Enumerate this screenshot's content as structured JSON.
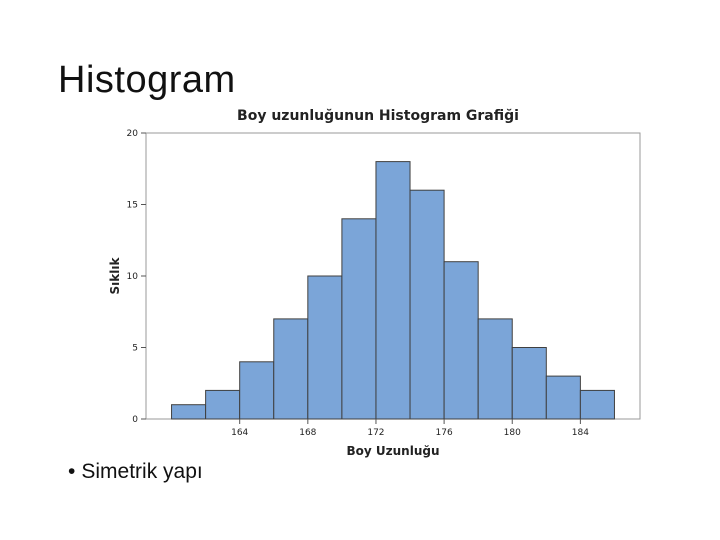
{
  "slide": {
    "title": "Histogram",
    "bullet": "Simetrik yapı",
    "bullet_marker": "•"
  },
  "chart_data": {
    "type": "bar",
    "title": "Boy uzunluğunun Histogram Grafiği",
    "xlabel": "Boy Uzunluğu",
    "ylabel": "Sıklık",
    "bin_edges": [
      160,
      162,
      164,
      166,
      168,
      170,
      172,
      174,
      176,
      178,
      180,
      182,
      184,
      186
    ],
    "values": [
      1,
      2,
      4,
      7,
      10,
      14,
      18,
      16,
      11,
      7,
      5,
      3,
      2
    ],
    "xlim": [
      158.5,
      187.5
    ],
    "xticks": [
      164,
      168,
      172,
      176,
      180,
      184
    ],
    "ylim": [
      0,
      20
    ],
    "yticks": [
      0,
      5,
      10,
      15,
      20
    ],
    "bar_color": "#7BA5D8",
    "bar_edge_color": "#3F3F3F",
    "grid": false,
    "legend": "none"
  }
}
